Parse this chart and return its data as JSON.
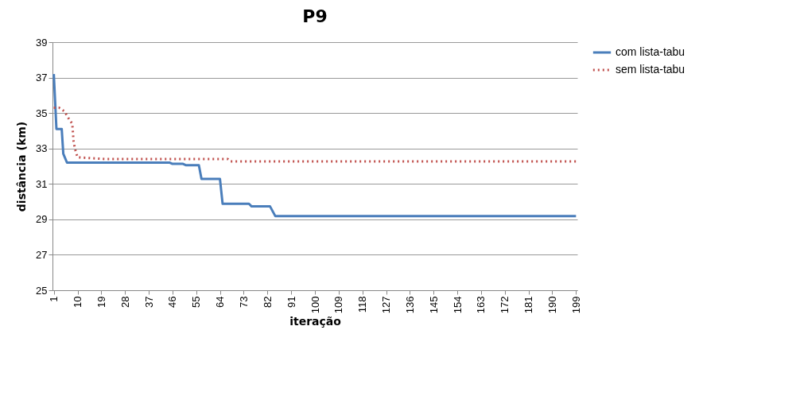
{
  "chart_data": {
    "type": "line",
    "title": "P9",
    "xlabel": "iteração",
    "ylabel": "distância (km)",
    "xlim": [
      0.5,
      199.5
    ],
    "xticks": [
      1,
      10,
      19,
      28,
      37,
      46,
      55,
      64,
      73,
      82,
      91,
      100,
      109,
      118,
      127,
      136,
      145,
      154,
      163,
      172,
      181,
      190,
      199
    ],
    "ylim": [
      25,
      39
    ],
    "yticks": [
      25,
      27,
      29,
      31,
      33,
      35,
      37,
      39
    ],
    "grid": "y",
    "legend": "right",
    "series": [
      {
        "name": "com lista-tabu",
        "color": "#4a7ebb",
        "line_style": "solid",
        "x": [
          1,
          2,
          4,
          4.6,
          6,
          45,
          46,
          50,
          51,
          56,
          57,
          64,
          65,
          75,
          76,
          83,
          85,
          199
        ],
        "values": [
          37.2,
          34.1,
          34.1,
          32.7,
          32.2,
          32.2,
          32.13,
          32.13,
          32.06,
          32.06,
          31.28,
          31.28,
          29.88,
          29.88,
          29.73,
          29.73,
          29.18,
          29.18
        ]
      },
      {
        "name": "sem lista-tabu",
        "color": "#c0504d",
        "line_style": "dotted",
        "x": [
          1,
          3,
          5,
          7,
          8,
          8.5,
          9,
          10,
          21,
          67,
          68,
          199
        ],
        "values": [
          35.3,
          35.3,
          35.1,
          34.6,
          34.4,
          33.4,
          33.0,
          32.5,
          32.4,
          32.4,
          32.27,
          32.27
        ]
      }
    ]
  }
}
